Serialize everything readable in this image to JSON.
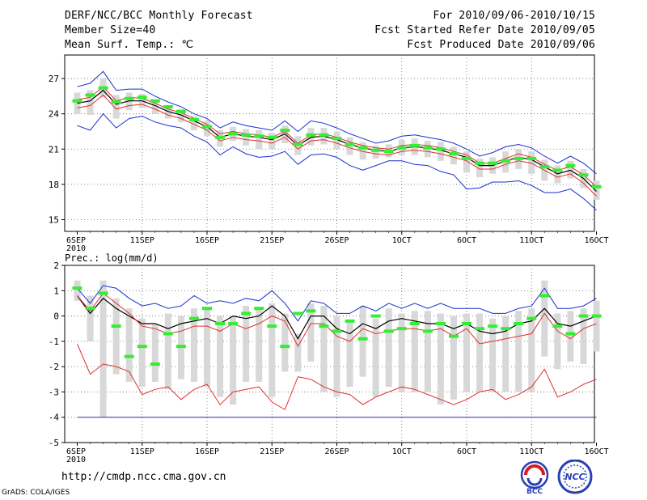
{
  "header": {
    "title": "DERF/NCC/BCC Monthly Forecast",
    "member_size": "Member Size=40",
    "variable": "Mean Surf. Temp.: ℃",
    "period": "For 2010/09/06-2010/10/15",
    "started": "Fcst Started Refer Date 2010/09/05",
    "produced": "Fcst Produced Date 2010/09/06"
  },
  "footer": {
    "url": "http://cmdp.ncc.cma.gov.cn",
    "credit": "GrADS: COLA/IGES",
    "logo_left": "BCC",
    "logo_right": "NCC"
  },
  "colors": {
    "box": "#d8d8d8",
    "median": "#33ee33",
    "mean": "#000000",
    "inner": "#e03030",
    "outer": "#1a2fd0",
    "floor": "#3030a0"
  },
  "chart_data": [
    {
      "type": "line",
      "title": "Mean Surf. Temp.: ℃",
      "days": 40,
      "xticks": [
        {
          "day": 0,
          "label": "6SEP",
          "sub": "2010"
        },
        {
          "day": 5,
          "label": "11SEP"
        },
        {
          "day": 10,
          "label": "16SEP"
        },
        {
          "day": 15,
          "label": "21SEP"
        },
        {
          "day": 20,
          "label": "26SEP"
        },
        {
          "day": 25,
          "label": "1OCT"
        },
        {
          "day": 30,
          "label": "6OCT"
        },
        {
          "day": 35,
          "label": "11OCT"
        },
        {
          "day": 40,
          "label": "16OCT"
        }
      ],
      "ylim": [
        14,
        29
      ],
      "yticks": [
        15,
        18,
        21,
        24,
        27
      ],
      "series": [
        {
          "name": "ensemble mean",
          "values": [
            24.9,
            25.1,
            26.0,
            24.8,
            25.1,
            25.1,
            24.7,
            24.2,
            23.9,
            23.4,
            22.9,
            22.0,
            22.3,
            22.1,
            22.0,
            21.8,
            22.3,
            21.3,
            22.0,
            22.1,
            21.8,
            21.4,
            21.1,
            20.9,
            20.8,
            21.1,
            21.2,
            21.1,
            20.9,
            20.6,
            20.3,
            19.6,
            19.6,
            20.0,
            20.3,
            20.1,
            19.5,
            18.9,
            19.2,
            18.5,
            17.4
          ]
        },
        {
          "name": "upper inner",
          "values": [
            25.2,
            25.4,
            26.3,
            25.1,
            25.4,
            25.3,
            24.9,
            24.4,
            24.1,
            23.6,
            23.1,
            22.3,
            22.5,
            22.3,
            22.2,
            22.0,
            22.5,
            21.5,
            22.2,
            22.3,
            22.0,
            21.6,
            21.3,
            21.1,
            21.0,
            21.3,
            21.4,
            21.3,
            21.1,
            20.8,
            20.5,
            19.8,
            19.8,
            20.2,
            20.6,
            20.3,
            19.7,
            19.2,
            19.5,
            18.8,
            17.8
          ]
        },
        {
          "name": "lower inner",
          "values": [
            24.5,
            24.7,
            25.6,
            24.4,
            24.7,
            24.8,
            24.4,
            23.9,
            23.6,
            23.1,
            22.6,
            21.7,
            22.0,
            21.8,
            21.7,
            21.5,
            22.0,
            21.0,
            21.7,
            21.8,
            21.5,
            21.1,
            20.8,
            20.6,
            20.5,
            20.8,
            20.9,
            20.8,
            20.6,
            20.3,
            20.0,
            19.3,
            19.3,
            19.7,
            20.0,
            19.8,
            19.2,
            18.6,
            18.9,
            18.1,
            17.0
          ]
        },
        {
          "name": "maximum",
          "values": [
            26.3,
            26.6,
            27.6,
            26.0,
            26.1,
            26.1,
            25.5,
            25.0,
            24.6,
            24.0,
            23.6,
            22.8,
            23.3,
            23.0,
            22.8,
            22.6,
            23.4,
            22.5,
            23.4,
            23.2,
            22.8,
            22.3,
            21.9,
            21.5,
            21.7,
            22.1,
            22.2,
            22.0,
            21.8,
            21.5,
            21.0,
            20.4,
            20.7,
            21.2,
            21.4,
            21.1,
            20.4,
            19.8,
            20.4,
            19.8,
            18.9
          ]
        },
        {
          "name": "minimum",
          "values": [
            23.0,
            22.6,
            24.0,
            22.8,
            23.6,
            23.8,
            23.3,
            23.0,
            22.8,
            22.1,
            21.6,
            20.5,
            21.2,
            20.6,
            20.3,
            20.4,
            20.8,
            19.7,
            20.5,
            20.6,
            20.3,
            19.6,
            19.2,
            19.6,
            20.0,
            20.0,
            19.7,
            19.6,
            19.1,
            18.8,
            17.6,
            17.7,
            18.2,
            18.2,
            18.3,
            17.9,
            17.3,
            17.3,
            17.6,
            16.8,
            15.8
          ]
        }
      ],
      "boxes": {
        "lo": [
          24.0,
          23.9,
          25.4,
          23.6,
          24.3,
          24.5,
          24.0,
          23.6,
          23.3,
          22.6,
          22.1,
          21.2,
          21.7,
          21.3,
          21.0,
          21.0,
          21.5,
          20.5,
          21.3,
          21.4,
          21.0,
          20.5,
          20.1,
          20.2,
          20.3,
          20.5,
          20.5,
          20.3,
          20.0,
          19.7,
          19.0,
          18.6,
          18.9,
          19.0,
          19.3,
          18.9,
          18.3,
          18.1,
          18.5,
          17.7,
          16.7
        ],
        "hi": [
          25.8,
          26.0,
          27.0,
          25.6,
          25.8,
          25.7,
          25.2,
          24.7,
          24.4,
          23.8,
          23.4,
          22.6,
          22.9,
          22.7,
          22.6,
          22.4,
          23.0,
          22.1,
          22.8,
          22.8,
          22.5,
          22.0,
          21.6,
          21.3,
          21.4,
          21.8,
          21.9,
          21.7,
          21.6,
          21.2,
          20.8,
          20.2,
          20.3,
          20.8,
          21.0,
          20.8,
          20.1,
          19.6,
          20.0,
          19.3,
          18.3
        ],
        "median": [
          25.1,
          25.6,
          26.2,
          25.0,
          25.3,
          25.4,
          25.1,
          24.6,
          24.2,
          23.5,
          22.9,
          22.0,
          22.3,
          22.2,
          22.1,
          22.0,
          22.6,
          21.4,
          22.2,
          22.2,
          21.9,
          21.4,
          21.1,
          20.9,
          20.8,
          21.1,
          21.3,
          21.1,
          21.0,
          20.6,
          20.2,
          19.8,
          19.8,
          20.0,
          20.2,
          20.2,
          19.5,
          19.2,
          19.6,
          18.8,
          17.8
        ]
      }
    },
    {
      "type": "line",
      "title": "Prec.: log(mm/d)",
      "days": 40,
      "xticks": [
        {
          "day": 0,
          "label": "6SEP",
          "sub": "2010"
        },
        {
          "day": 5,
          "label": "11SEP"
        },
        {
          "day": 10,
          "label": "16SEP"
        },
        {
          "day": 15,
          "label": "21SEP"
        },
        {
          "day": 20,
          "label": "26SEP"
        },
        {
          "day": 25,
          "label": "1OCT"
        },
        {
          "day": 30,
          "label": "6OCT"
        },
        {
          "day": 35,
          "label": "11OCT"
        },
        {
          "day": 40,
          "label": "16OCT"
        }
      ],
      "ylim": [
        -5,
        2
      ],
      "yticks": [
        -5,
        -4,
        -3,
        -2,
        -1,
        0,
        1,
        2
      ],
      "floor": -4,
      "series": [
        {
          "name": "ensemble mean",
          "values": [
            0.8,
            0.1,
            0.7,
            0.3,
            0.0,
            -0.3,
            -0.3,
            -0.5,
            -0.3,
            -0.2,
            -0.1,
            -0.3,
            0.0,
            -0.1,
            0.0,
            0.4,
            0.0,
            -0.9,
            0.0,
            0.0,
            -0.5,
            -0.7,
            -0.3,
            -0.5,
            -0.2,
            -0.1,
            -0.2,
            -0.3,
            -0.3,
            -0.5,
            -0.3,
            -0.6,
            -0.7,
            -0.6,
            -0.3,
            -0.2,
            0.3,
            -0.3,
            -0.4,
            -0.2,
            0.0
          ]
        },
        {
          "name": "upper inner",
          "values": [
            0.8,
            0.2,
            0.9,
            0.5,
            0.1,
            -0.4,
            -0.5,
            -0.7,
            -0.6,
            -0.4,
            -0.4,
            -0.6,
            -0.3,
            -0.5,
            -0.3,
            0.0,
            -0.2,
            -1.2,
            -0.3,
            -0.3,
            -0.8,
            -1.0,
            -0.5,
            -0.7,
            -0.6,
            -0.5,
            -0.5,
            -0.6,
            -0.5,
            -0.8,
            -0.5,
            -1.1,
            -1.0,
            -0.9,
            -0.8,
            -0.7,
            0.1,
            -0.6,
            -0.9,
            -0.5,
            -0.3
          ]
        },
        {
          "name": "lower inner",
          "values": [
            -1.1,
            -2.3,
            -1.9,
            -2.0,
            -2.2,
            -3.1,
            -2.9,
            -2.8,
            -3.3,
            -2.9,
            -2.7,
            -3.5,
            -3.0,
            -2.9,
            -2.8,
            -3.4,
            -3.7,
            -2.4,
            -2.5,
            -2.8,
            -3.0,
            -3.1,
            -3.5,
            -3.2,
            -3.0,
            -2.8,
            -2.9,
            -3.1,
            -3.3,
            -3.5,
            -3.3,
            -3.0,
            -2.9,
            -3.3,
            -3.1,
            -2.8,
            -2.1,
            -3.2,
            -3.0,
            -2.7,
            -2.5
          ]
        },
        {
          "name": "maximum",
          "values": [
            1.1,
            0.5,
            1.2,
            1.1,
            0.7,
            0.4,
            0.5,
            0.3,
            0.4,
            0.8,
            0.5,
            0.6,
            0.5,
            0.7,
            0.6,
            1.0,
            0.5,
            -0.2,
            0.6,
            0.5,
            0.1,
            0.1,
            0.4,
            0.2,
            0.5,
            0.3,
            0.5,
            0.3,
            0.5,
            0.3,
            0.3,
            0.3,
            0.1,
            0.1,
            0.3,
            0.4,
            1.1,
            0.3,
            0.3,
            0.4,
            0.7
          ]
        },
        {
          "name": "floor",
          "values": [
            -4,
            -4,
            -4,
            -4,
            -4,
            -4,
            -4,
            -4,
            -4,
            -4,
            -4,
            -4,
            -4,
            -4,
            -4,
            -4,
            -4,
            -4,
            -4,
            -4,
            -4,
            -4,
            -4,
            -4,
            -4,
            -4,
            -4,
            -4,
            -4,
            -4,
            -4,
            -4,
            -4,
            -4,
            -4,
            -4,
            -4,
            -4,
            -4,
            -4,
            -4
          ]
        }
      ],
      "boxes": {
        "lo": [
          0.6,
          -1.0,
          -4.0,
          -2.3,
          -2.6,
          -2.8,
          -2.6,
          -2.9,
          -2.5,
          -2.6,
          -2.8,
          -3.2,
          -3.5,
          -2.6,
          -2.6,
          -3.2,
          -2.2,
          -2.2,
          -1.8,
          -3.0,
          -3.2,
          -2.8,
          -2.4,
          -3.2,
          -2.8,
          -3.0,
          -3.0,
          -3.0,
          -3.5,
          -3.3,
          -3.0,
          -3.0,
          -3.0,
          -3.0,
          -3.0,
          -3.0,
          -1.6,
          -2.1,
          -1.8,
          -1.9,
          -1.4
        ],
        "hi": [
          1.4,
          0.8,
          1.4,
          0.7,
          0.3,
          -0.1,
          -0.3,
          0.1,
          0.0,
          0.3,
          0.3,
          0.0,
          0.0,
          0.4,
          0.3,
          0.5,
          0.1,
          -0.7,
          0.5,
          0.4,
          0.0,
          -0.2,
          0.4,
          -0.1,
          0.3,
          0.1,
          0.2,
          0.2,
          0.1,
          0.0,
          0.1,
          0.1,
          -0.1,
          0.0,
          0.2,
          0.3,
          1.4,
          0.1,
          0.2,
          0.3,
          0.6
        ],
        "median": [
          1.1,
          0.3,
          0.9,
          -0.4,
          -1.6,
          -1.2,
          -1.9,
          -0.7,
          -1.2,
          -0.1,
          0.3,
          -0.3,
          -0.3,
          0.1,
          0.3,
          -0.4,
          -1.2,
          0.1,
          0.2,
          -0.4,
          -0.6,
          -0.2,
          -0.9,
          0.0,
          -0.6,
          -0.5,
          -0.3,
          -0.6,
          -0.3,
          -0.8,
          -0.3,
          -0.5,
          -0.4,
          -0.5,
          -0.3,
          -0.1,
          0.8,
          -0.4,
          -0.7,
          0.0,
          0.0
        ]
      }
    }
  ]
}
